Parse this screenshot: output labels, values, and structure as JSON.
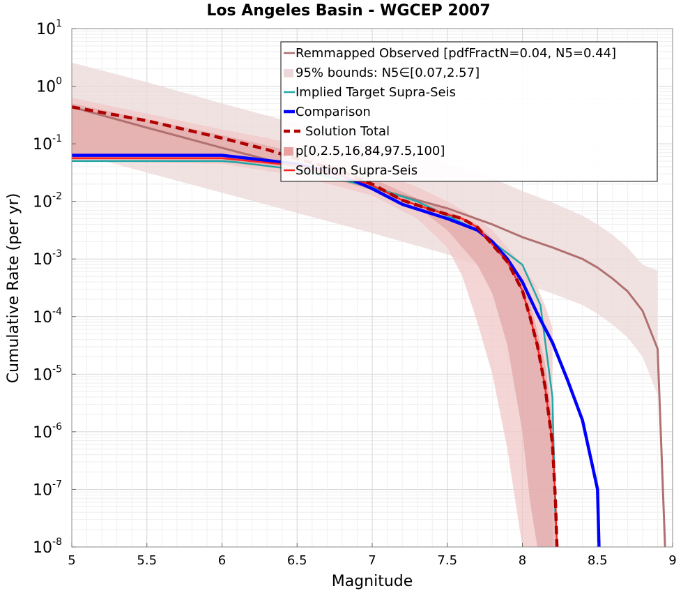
{
  "chart_data": {
    "type": "line",
    "title": "Los Angeles Basin - WGCEP 2007",
    "xlabel": "Magnitude",
    "ylabel": "Cumulative Rate (per yr)",
    "xlim": [
      5,
      9
    ],
    "ylim_log10": [
      -8,
      1
    ],
    "y_scale": "log",
    "grid": true,
    "legend_position": "top-right",
    "x_ticks": [
      "5",
      "5.5",
      "6",
      "6.5",
      "7",
      "7.5",
      "8",
      "8.5",
      "9"
    ],
    "y_ticks": [
      {
        "base": "10",
        "exp": "1"
      },
      {
        "base": "10",
        "exp": "0"
      },
      {
        "base": "10",
        "exp": "-1"
      },
      {
        "base": "10",
        "exp": "-2"
      },
      {
        "base": "10",
        "exp": "-3"
      },
      {
        "base": "10",
        "exp": "-4"
      },
      {
        "base": "10",
        "exp": "-5"
      },
      {
        "base": "10",
        "exp": "-6"
      },
      {
        "base": "10",
        "exp": "-7"
      },
      {
        "base": "10",
        "exp": "-8"
      }
    ],
    "legend": [
      {
        "label": "Remmapped Observed [pdfFractN=0.04, N5=0.44]",
        "color": "#b07070",
        "style": "line"
      },
      {
        "label": "95% bounds: N5∈[0.07,2.57]",
        "color": "#ecd8d8",
        "style": "patch"
      },
      {
        "label": "Implied Target Supra-Seis",
        "color": "#20a8a8",
        "style": "line"
      },
      {
        "label": "Comparison",
        "color": "#0000ff",
        "style": "thick"
      },
      {
        "label": "Solution Total",
        "color": "#b00000",
        "style": "dashed"
      },
      {
        "label": "p[0,2.5,16,84,97.5,100]",
        "color": "#e8a0a0",
        "style": "patch"
      },
      {
        "label": "Solution Supra-Seis",
        "color": "#ff2020",
        "style": "line"
      }
    ],
    "series": [
      {
        "name": "Remmapped Observed [pdfFractN=0.04, N5=0.44]",
        "color": "#b07070",
        "x": [
          5.0,
          5.5,
          6.0,
          6.5,
          7.0,
          7.5,
          7.8,
          8.0,
          8.2,
          8.4,
          8.5,
          8.6,
          8.7,
          8.8,
          8.9,
          8.95
        ],
        "log10y": [
          -0.36,
          -0.72,
          -1.07,
          -1.41,
          -1.76,
          -2.12,
          -2.4,
          -2.62,
          -2.8,
          -3.0,
          -3.15,
          -3.34,
          -3.56,
          -3.9,
          -4.56,
          -8.0
        ]
      },
      {
        "name": "Implied Target Supra-Seis",
        "color": "#20a8a8",
        "x": [
          5.0,
          5.5,
          6.0,
          6.1,
          6.5,
          7.0,
          7.3,
          7.5,
          7.7,
          7.8,
          8.0,
          8.12,
          8.2,
          8.21,
          8.22,
          8.23
        ],
        "log10y": [
          -1.3,
          -1.3,
          -1.3,
          -1.32,
          -1.45,
          -1.75,
          -2.0,
          -2.25,
          -2.5,
          -2.7,
          -3.1,
          -3.8,
          -5.4,
          -6.5,
          -7.5,
          -8.0
        ]
      },
      {
        "name": "Comparison",
        "color": "#0000ff",
        "x": [
          5.0,
          5.5,
          6.0,
          6.5,
          6.8,
          7.0,
          7.2,
          7.5,
          7.7,
          7.8,
          7.9,
          8.0,
          8.1,
          8.2,
          8.3,
          8.4,
          8.5,
          8.51
        ],
        "log10y": [
          -1.2,
          -1.2,
          -1.2,
          -1.35,
          -1.55,
          -1.78,
          -2.05,
          -2.3,
          -2.5,
          -2.7,
          -3.0,
          -3.4,
          -3.95,
          -4.45,
          -5.1,
          -5.8,
          -7.0,
          -8.0
        ]
      },
      {
        "name": "Solution Total",
        "color": "#b00000",
        "dashed": true,
        "x": [
          5.0,
          5.5,
          6.0,
          6.3,
          6.5,
          6.8,
          7.0,
          7.2,
          7.4,
          7.6,
          7.7,
          7.8,
          7.9,
          8.0,
          8.05,
          8.1,
          8.15,
          8.2,
          8.22,
          8.23
        ],
        "log10y": [
          -0.36,
          -0.6,
          -0.9,
          -1.1,
          -1.26,
          -1.48,
          -1.7,
          -1.98,
          -2.15,
          -2.3,
          -2.45,
          -2.75,
          -3.05,
          -3.55,
          -4.0,
          -4.5,
          -5.2,
          -6.2,
          -7.2,
          -8.0
        ]
      },
      {
        "name": "Solution Supra-Seis",
        "color": "#ff2020",
        "x": [
          5.0,
          5.5,
          6.0,
          6.5,
          6.8,
          7.0,
          7.2,
          7.4,
          7.6,
          7.7,
          7.8,
          7.9,
          8.0,
          8.05,
          8.1,
          8.15,
          8.2,
          8.22,
          8.23
        ],
        "log10y": [
          -1.25,
          -1.25,
          -1.25,
          -1.38,
          -1.55,
          -1.72,
          -1.98,
          -2.15,
          -2.3,
          -2.45,
          -2.75,
          -3.05,
          -3.55,
          -4.0,
          -4.5,
          -5.2,
          -6.2,
          -7.2,
          -8.0
        ]
      }
    ],
    "bands": [
      {
        "name": "95% bounds: N5∈[0.07,2.57]",
        "color": "#ecd8d8",
        "x": [
          5.0,
          5.5,
          6.0,
          6.5,
          7.0,
          7.5,
          7.8,
          8.0,
          8.2,
          8.4,
          8.5,
          8.6,
          8.7,
          8.8,
          8.9
        ],
        "log10y_low": [
          -1.15,
          -1.5,
          -1.85,
          -2.2,
          -2.55,
          -2.92,
          -3.2,
          -3.42,
          -3.6,
          -3.8,
          -3.95,
          -4.14,
          -4.36,
          -4.7,
          -5.36
        ],
        "log10y_high": [
          0.41,
          0.07,
          -0.3,
          -0.65,
          -1.0,
          -1.35,
          -1.6,
          -1.82,
          -2.02,
          -2.25,
          -2.4,
          -2.58,
          -2.8,
          -3.1,
          -3.2
        ]
      },
      {
        "name": "p[0,2.5,16,84,97.5,100] outer",
        "color": "#f0c8c8",
        "x": [
          5.0,
          6.0,
          6.5,
          7.0,
          7.3,
          7.5,
          7.6,
          7.7,
          7.8,
          7.9,
          8.0,
          8.1,
          8.15,
          8.2
        ],
        "log10y_low": [
          -1.3,
          -1.35,
          -1.55,
          -1.9,
          -2.3,
          -2.8,
          -3.3,
          -4.1,
          -5.0,
          -6.3,
          -8.0,
          -8.0,
          -8.0,
          -8.0
        ],
        "log10y_high": [
          -0.2,
          -0.75,
          -1.0,
          -1.45,
          -1.75,
          -2.0,
          -2.15,
          -2.3,
          -2.5,
          -2.8,
          -3.1,
          -3.5,
          -3.8,
          -4.2
        ]
      },
      {
        "name": "p[0,2.5,16,84,97.5,100] inner",
        "color": "#e2a8a8",
        "x": [
          5.0,
          6.0,
          6.5,
          7.0,
          7.3,
          7.5,
          7.7,
          7.8,
          7.9,
          8.0,
          8.05,
          8.1,
          8.15,
          8.2,
          8.22
        ],
        "log10y_low": [
          -1.3,
          -1.32,
          -1.45,
          -1.8,
          -2.1,
          -2.5,
          -3.1,
          -3.6,
          -4.5,
          -6.0,
          -7.2,
          -8.0,
          -8.0,
          -8.0,
          -8.0
        ],
        "log10y_high": [
          -0.3,
          -0.85,
          -1.15,
          -1.6,
          -1.95,
          -2.15,
          -2.4,
          -2.65,
          -2.95,
          -3.35,
          -3.75,
          -4.25,
          -4.8,
          -5.8,
          -8.0
        ]
      }
    ]
  }
}
